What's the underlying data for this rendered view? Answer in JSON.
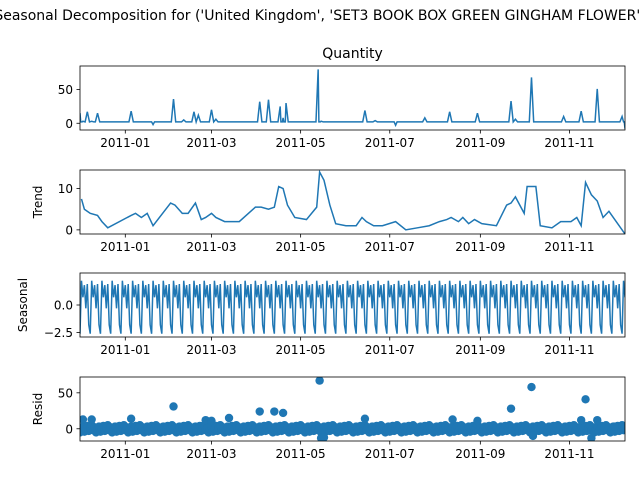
{
  "figure": {
    "suptitle": "Seasonal Decomposition for ('United Kingdom', 'SET3 BOOK BOX GREEN GINGHAM FLOWER')"
  },
  "colors": {
    "series": "#1f77b4",
    "axis": "#000000",
    "background": "#ffffff"
  },
  "chart_data": [
    {
      "type": "line",
      "title": "Quantity",
      "ylabel": "",
      "xlim": [
        "2010-12-01",
        "2011-12-09"
      ],
      "ylim": [
        -10,
        85
      ],
      "yticks": [
        0,
        50
      ],
      "xticks": [
        "2011-01",
        "2011-03",
        "2011-05",
        "2011-07",
        "2011-09",
        "2011-11"
      ],
      "baseline": 2,
      "x": [
        "2010-12-01",
        "2010-12-03",
        "2010-12-06",
        "2010-12-09",
        "2010-12-13",
        "2011-01-05",
        "2011-02-03",
        "2011-02-10",
        "2011-02-17",
        "2011-02-20",
        "2011-03-01",
        "2011-03-04",
        "2011-04-03",
        "2011-04-09",
        "2011-04-17",
        "2011-04-19",
        "2011-04-21",
        "2011-05-13",
        "2011-05-15",
        "2011-06-14",
        "2011-06-21",
        "2011-07-25",
        "2011-08-11",
        "2011-08-30",
        "2011-09-22",
        "2011-09-25",
        "2011-10-06",
        "2011-10-28",
        "2011-11-09",
        "2011-11-20",
        "2011-12-07"
      ],
      "y": [
        15,
        3,
        17,
        3,
        15,
        18,
        36,
        5,
        17,
        12,
        20,
        6,
        32,
        35,
        25,
        8,
        30,
        80,
        3,
        19,
        4,
        8,
        17,
        15,
        33,
        6,
        68,
        10,
        18,
        51,
        10
      ],
      "dips": [
        {
          "x": "2011-01-20",
          "y": -2
        },
        {
          "x": "2011-07-05",
          "y": -3
        },
        {
          "x": "2011-12-09",
          "y": -8
        }
      ]
    },
    {
      "type": "line",
      "title": "",
      "ylabel": "Trend",
      "xlim": [
        "2010-12-01",
        "2011-12-09"
      ],
      "ylim": [
        -1,
        14.5
      ],
      "yticks": [
        0,
        10
      ],
      "xticks": [
        "2011-01",
        "2011-03",
        "2011-05",
        "2011-07",
        "2011-09",
        "2011-11"
      ],
      "x": [
        "2010-12-02",
        "2010-12-04",
        "2010-12-08",
        "2010-12-13",
        "2010-12-16",
        "2010-12-20",
        "2011-01-05",
        "2011-01-08",
        "2011-01-12",
        "2011-01-16",
        "2011-01-20",
        "2011-02-01",
        "2011-02-04",
        "2011-02-09",
        "2011-02-13",
        "2011-02-18",
        "2011-02-22",
        "2011-02-25",
        "2011-03-01",
        "2011-03-04",
        "2011-03-10",
        "2011-03-20",
        "2011-03-31",
        "2011-04-04",
        "2011-04-09",
        "2011-04-13",
        "2011-04-16",
        "2011-04-19",
        "2011-04-22",
        "2011-04-27",
        "2011-05-05",
        "2011-05-12",
        "2011-05-14",
        "2011-05-17",
        "2011-05-21",
        "2011-05-25",
        "2011-06-01",
        "2011-06-08",
        "2011-06-12",
        "2011-06-15",
        "2011-06-20",
        "2011-06-26",
        "2011-07-05",
        "2011-07-12",
        "2011-07-20",
        "2011-07-28",
        "2011-08-04",
        "2011-08-09",
        "2011-08-12",
        "2011-08-17",
        "2011-08-20",
        "2011-08-24",
        "2011-08-28",
        "2011-09-02",
        "2011-09-12",
        "2011-09-19",
        "2011-09-22",
        "2011-09-25",
        "2011-10-01",
        "2011-10-03",
        "2011-10-09",
        "2011-10-12",
        "2011-10-20",
        "2011-10-26",
        "2011-11-02",
        "2011-11-06",
        "2011-11-09",
        "2011-11-12",
        "2011-11-16",
        "2011-11-20",
        "2011-11-24",
        "2011-11-28",
        "2011-12-02",
        "2011-12-06",
        "2011-12-09"
      ],
      "y": [
        7.5,
        5,
        4,
        3.5,
        2,
        0.5,
        3.5,
        4,
        3,
        4,
        1,
        6.5,
        6,
        4,
        4,
        6.5,
        2.5,
        3,
        4,
        3,
        2,
        2,
        5.5,
        5.5,
        5,
        5.5,
        10.5,
        10,
        6,
        3,
        2.5,
        5.5,
        14,
        12,
        6,
        1.5,
        1,
        1,
        3,
        2,
        1,
        1,
        2,
        0,
        0.5,
        1,
        2,
        2.5,
        3,
        2,
        3,
        1.5,
        2.5,
        1.5,
        1,
        6,
        6.5,
        8,
        4,
        10.5,
        10.5,
        1,
        0.5,
        2,
        2,
        3,
        1,
        11.5,
        8.5,
        7,
        3,
        4.5,
        2.5,
        0.5,
        -1
      ]
    },
    {
      "type": "line",
      "title": "",
      "ylabel": "Seasonal",
      "xlim": [
        "2010-12-01",
        "2011-12-09"
      ],
      "ylim": [
        -2.9,
        2.9
      ],
      "yticks": [
        -2.5,
        0.0
      ],
      "ytick_labels": [
        "−2.5",
        "0.0"
      ],
      "xticks": [
        "2011-01",
        "2011-03",
        "2011-05",
        "2011-07",
        "2011-09",
        "2011-11"
      ],
      "period_days": 7,
      "weekly_pattern": [
        -2.6,
        2.2,
        0.7,
        1.8,
        -0.3,
        1.9,
        -1.8
      ]
    },
    {
      "type": "scatter",
      "title": "",
      "ylabel": "Resid",
      "xlim": [
        "2010-12-01",
        "2011-12-09"
      ],
      "ylim": [
        -17,
        72
      ],
      "yticks": [
        0,
        50
      ],
      "xticks": [
        "2011-01",
        "2011-03",
        "2011-05",
        "2011-07",
        "2011-09",
        "2011-11"
      ],
      "zero_line": true,
      "x": [
        "2010-12-03",
        "2010-12-09",
        "2011-01-05",
        "2011-02-03",
        "2011-02-25",
        "2011-03-01",
        "2011-03-13",
        "2011-04-03",
        "2011-04-13",
        "2011-04-19",
        "2011-05-14",
        "2011-06-14",
        "2011-08-13",
        "2011-08-30",
        "2011-09-22",
        "2011-10-06",
        "2011-11-09",
        "2011-11-12",
        "2011-11-20",
        "2011-12-02",
        "2011-05-15",
        "2011-05-17",
        "2011-10-07",
        "2011-11-16"
      ],
      "y": [
        13,
        13,
        14,
        31,
        12,
        11,
        15,
        24,
        24,
        22,
        67,
        14,
        13,
        11,
        28,
        58,
        12,
        41,
        12,
        3,
        -13,
        -12,
        -10,
        -13
      ]
    }
  ]
}
